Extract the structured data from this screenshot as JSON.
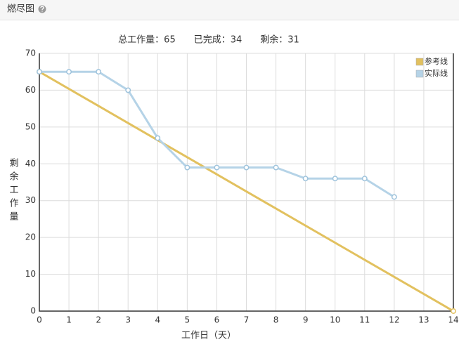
{
  "panel": {
    "title": "燃尽图"
  },
  "chart_data": {
    "type": "line",
    "subtitle": "总工作量：65　　已完成：34　　剩余：31",
    "xlabel": "工作日（天）",
    "ylabel": "剩余工作量",
    "xlim": [
      0,
      14
    ],
    "xticks": [
      0,
      1,
      2,
      3,
      4,
      5,
      6,
      7,
      8,
      9,
      10,
      11,
      12,
      13,
      14
    ],
    "ylim": [
      0,
      70
    ],
    "yticks": [
      0,
      10,
      20,
      30,
      40,
      50,
      60,
      70
    ],
    "grid": true,
    "legend": "upper-right",
    "series": [
      {
        "name": "参考线",
        "color": "#e2c15f",
        "x": [
          0,
          14
        ],
        "values": [
          65,
          0
        ]
      },
      {
        "name": "实际线",
        "color": "#b5d3e7",
        "x": [
          0,
          1,
          2,
          3,
          4,
          5,
          6,
          7,
          8,
          9,
          10,
          11,
          12
        ],
        "values": [
          65,
          65,
          65,
          60,
          47,
          39,
          39,
          39,
          39,
          36,
          36,
          36,
          31
        ]
      }
    ]
  }
}
